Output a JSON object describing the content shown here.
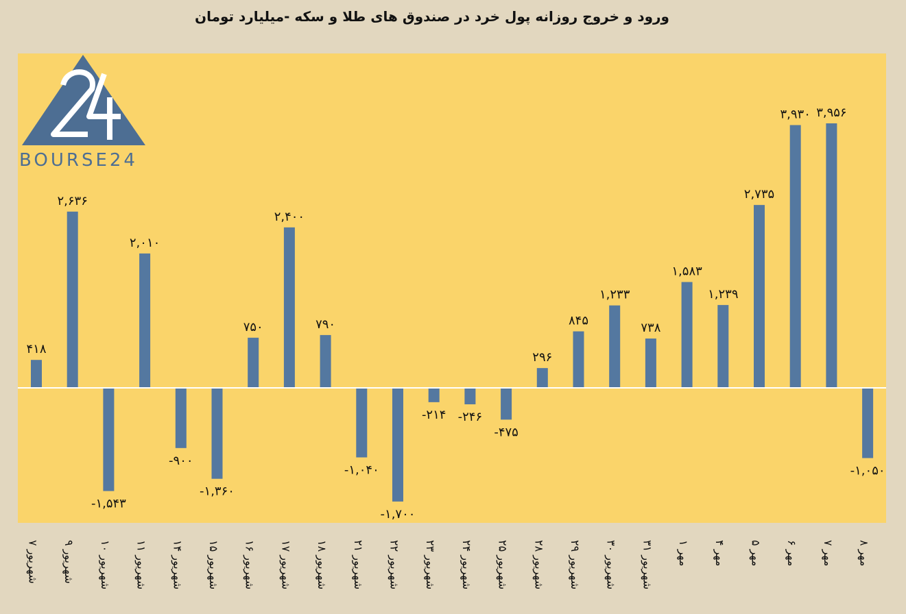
{
  "chart_data": {
    "type": "bar",
    "title": "ورود و خروج روزانه پول خرد در صندوق های طلا و سکه -میلیارد تومان",
    "categories": [
      "۷ شهریور",
      "۹ شهریور",
      "۱۰ شهریور",
      "۱۱ شهریور",
      "۱۴ شهریور",
      "۱۵ شهریور",
      "۱۶ شهریور",
      "۱۷ شهریور",
      "۱۸ شهریور",
      "۲۱ شهریور",
      "۲۲ شهریور",
      "۲۳ شهریور",
      "۲۴ شهریور",
      "۲۵ شهریور",
      "۲۸ شهریور",
      "۲۹ شهریور",
      "۳۰ شهریور",
      "۳۱ شهریور",
      "۱ مهر",
      "۴ مهر",
      "۵ مهر",
      "۶ مهر",
      "۷ مهر",
      "۸ مهر"
    ],
    "values": [
      418,
      2636,
      -1543,
      2010,
      -900,
      -1360,
      750,
      2400,
      790,
      -1040,
      -1700,
      -214,
      -246,
      -475,
      296,
      845,
      1233,
      738,
      1583,
      1239,
      2735,
      3930,
      3956,
      -1050
    ],
    "data_labels": [
      "۴۱۸",
      "۲,۶۳۶",
      "-۱,۵۴۳",
      "۲,۰۱۰",
      "-۹۰۰",
      "-۱,۳۶۰",
      "۷۵۰",
      "۲,۴۰۰",
      "۷۹۰",
      "-۱,۰۴۰",
      "-۱,۷۰۰",
      "-۲۱۴",
      "-۲۴۶",
      "-۴۷۵",
      "۲۹۶",
      "۸۴۵",
      "۱,۲۳۳",
      "۷۳۸",
      "۱,۵۸۳",
      "۱,۲۳۹",
      "۲,۷۳۵",
      "۳,۹۳۰",
      "۳,۹۵۶",
      "-۱,۰۵۰"
    ],
    "grid": false,
    "legend": "none",
    "colors": {
      "bar": "#5478a0",
      "plot_bg": "#fad46a",
      "page_bg": "#e2d7bf",
      "zero_line": "#ffffff"
    }
  },
  "logo": {
    "mark": "24",
    "text": "BOURSE24",
    "color": "#4d6e93"
  }
}
